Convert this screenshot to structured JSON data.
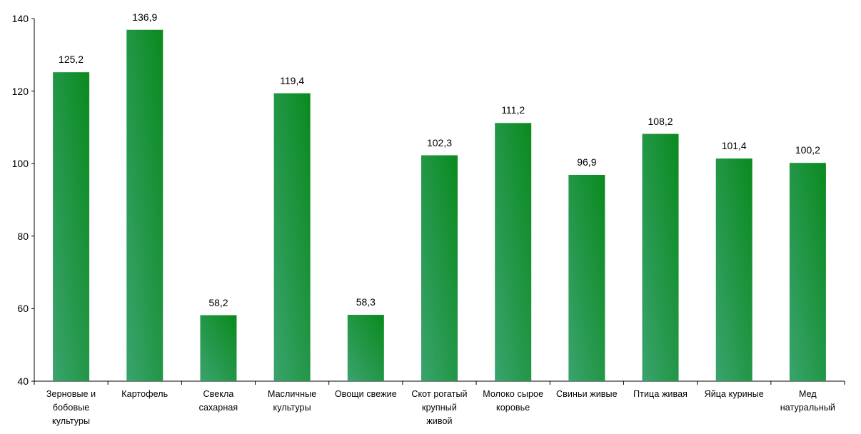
{
  "chart_data": {
    "type": "bar",
    "categories": [
      "Зерновые и\nбобовые\nкультуры",
      "Картофель",
      "Свекла\nсахарная",
      "Масличные\nкультуры",
      "Овощи свежие",
      "Скот рогатый\nкрупный\nживой",
      "Молоко сырое\nкоровье",
      "Свиньи живые",
      "Птица живая",
      "Яйца куриные",
      "Мед\nнатуральный"
    ],
    "values": [
      125.2,
      136.9,
      58.2,
      119.4,
      58.3,
      102.3,
      111.2,
      96.9,
      108.2,
      101.4,
      100.2
    ],
    "value_labels": [
      "125,2",
      "136,9",
      "58,2",
      "119,4",
      "58,3",
      "102,3",
      "111,2",
      "96,9",
      "108,2",
      "101,4",
      "100,2"
    ],
    "ylim": [
      40,
      140
    ],
    "yticks": [
      40,
      60,
      80,
      100,
      120,
      140
    ],
    "ytick_labels": [
      "40",
      "60",
      "80",
      "100",
      "120",
      "140"
    ],
    "title": "",
    "xlabel": "",
    "ylabel": "",
    "grid": false,
    "bar_color_dark": "#0a8a1e",
    "bar_color_light": "#3aa36e"
  }
}
